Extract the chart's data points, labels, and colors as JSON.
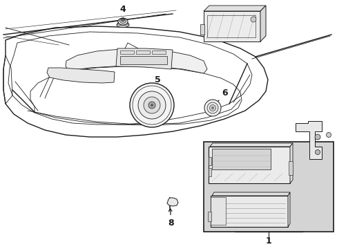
{
  "bg_color": "#ffffff",
  "line_color": "#1a1a1a",
  "gray_fill": "#d4d4d4",
  "light_fill": "#ececec",
  "mid_fill": "#c8c8c8",
  "figsize": [
    4.89,
    3.6
  ],
  "dpi": 100
}
